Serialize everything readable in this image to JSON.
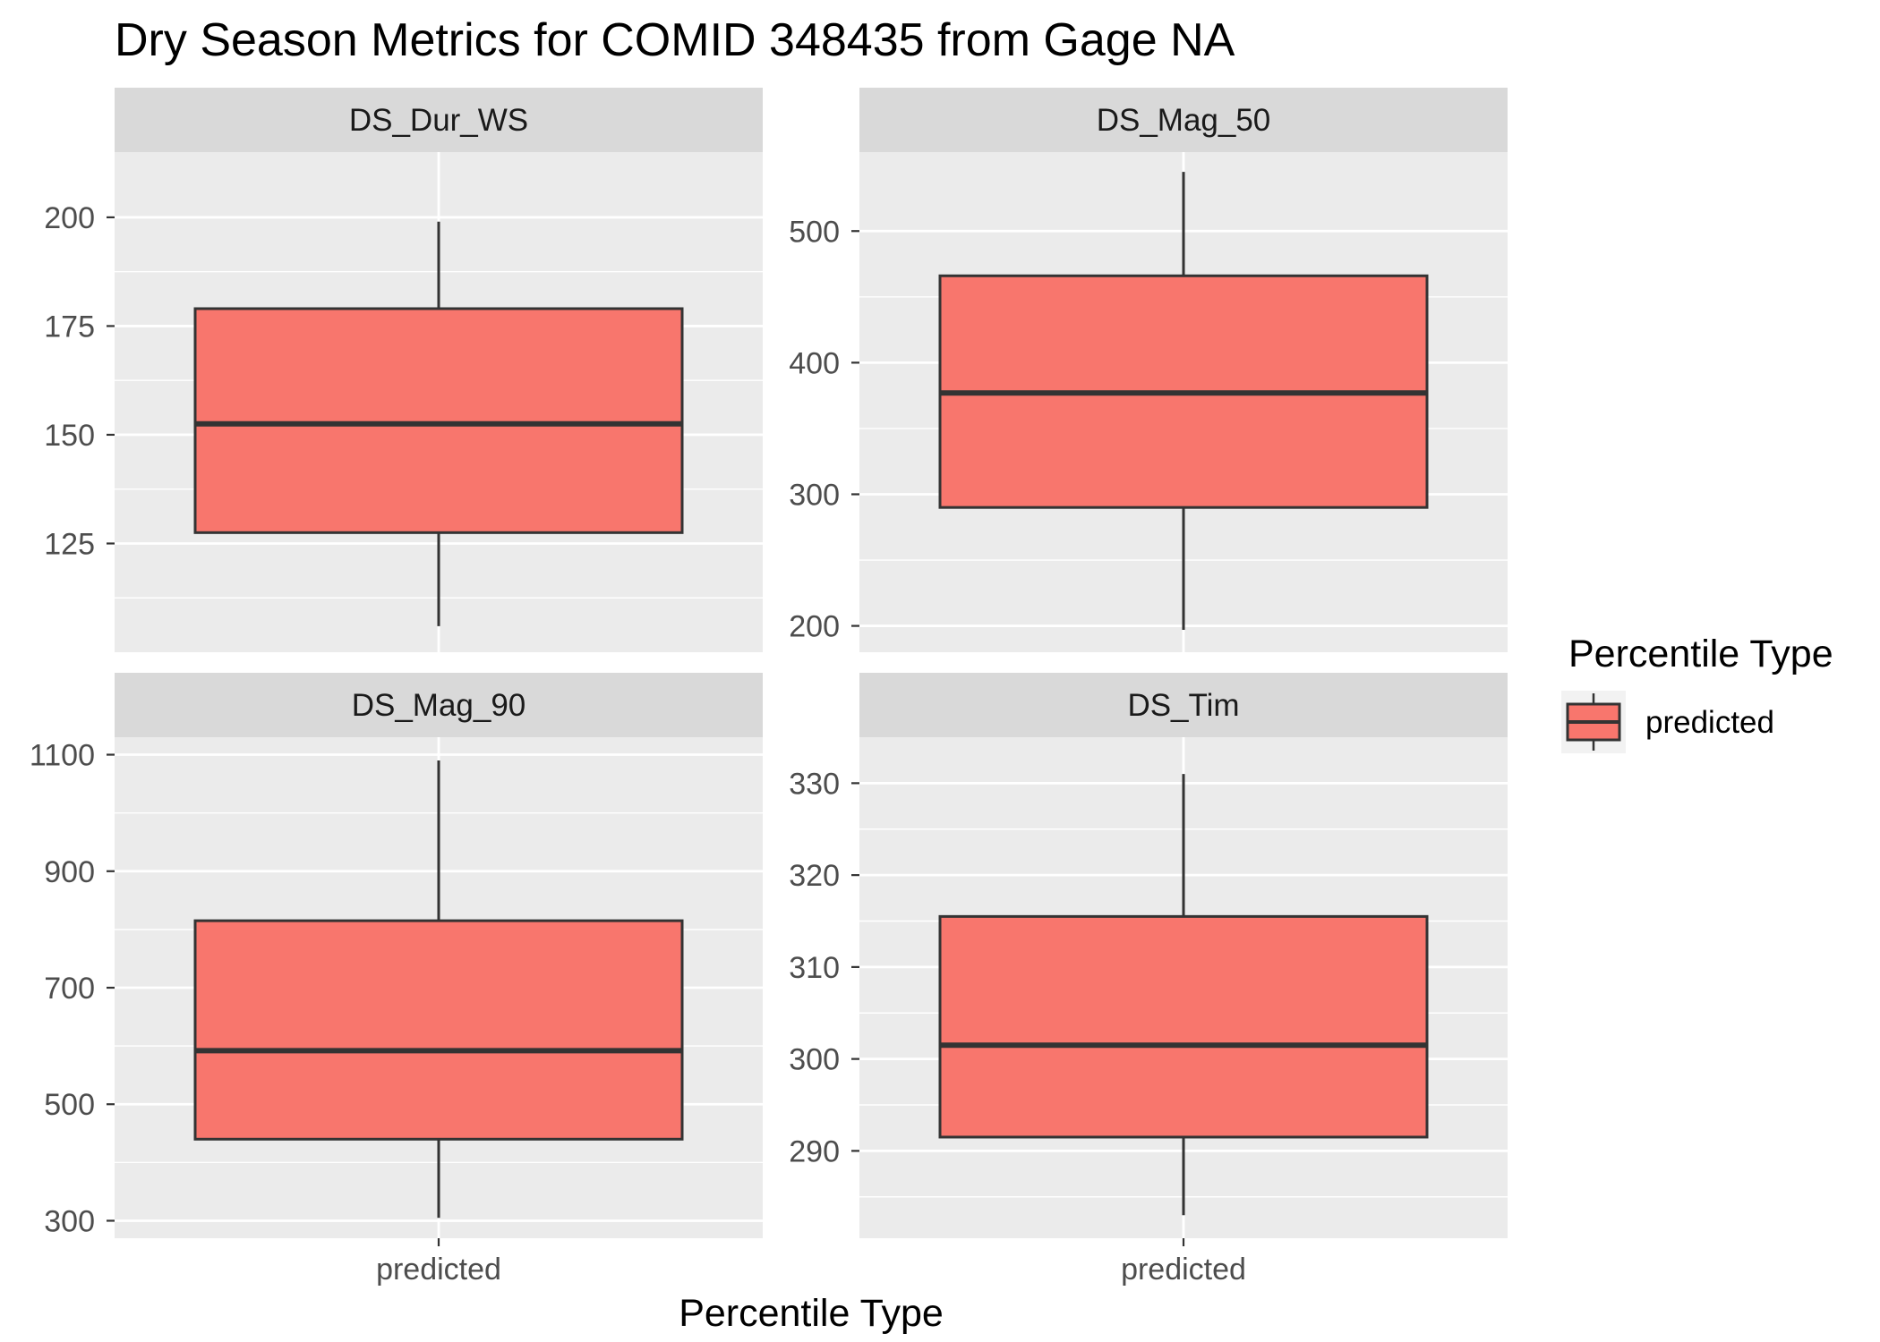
{
  "chart_data": {
    "type": "boxplot",
    "title": "Dry Season Metrics for COMID 348435 from Gage NA",
    "xlabel": "Percentile Type",
    "ylabel": "",
    "x_categories": [
      "predicted"
    ],
    "facets": [
      {
        "name": "DS_Dur_WS",
        "ylim": [
          100,
          215
        ],
        "yticks": [
          125,
          150,
          175,
          200
        ],
        "yticks_minor": [
          112.5,
          137.5,
          162.5,
          187.5
        ],
        "boxes": [
          {
            "x": "predicted",
            "ymin": 106,
            "lower": 127.5,
            "middle": 152.5,
            "upper": 179,
            "ymax": 199
          }
        ]
      },
      {
        "name": "DS_Mag_50",
        "ylim": [
          180,
          560
        ],
        "yticks": [
          200,
          300,
          400,
          500
        ],
        "yticks_minor": [
          250,
          350,
          450
        ],
        "boxes": [
          {
            "x": "predicted",
            "ymin": 197,
            "lower": 290,
            "middle": 377,
            "upper": 466,
            "ymax": 545
          }
        ]
      },
      {
        "name": "DS_Mag_90",
        "ylim": [
          270,
          1130
        ],
        "yticks": [
          300,
          500,
          700,
          900,
          1100
        ],
        "yticks_minor": [
          400,
          600,
          800,
          1000
        ],
        "boxes": [
          {
            "x": "predicted",
            "ymin": 305,
            "lower": 440,
            "middle": 592,
            "upper": 815,
            "ymax": 1090
          }
        ]
      },
      {
        "name": "DS_Tim",
        "ylim": [
          280.5,
          335
        ],
        "yticks": [
          290,
          300,
          310,
          320,
          330
        ],
        "yticks_minor": [
          285,
          295,
          305,
          315,
          325
        ],
        "boxes": [
          {
            "x": "predicted",
            "ymin": 283,
            "lower": 291.5,
            "middle": 301.5,
            "upper": 315.5,
            "ymax": 331
          }
        ]
      }
    ],
    "legend": {
      "title": "Percentile Type",
      "placement": "right",
      "entries": [
        {
          "label": "predicted",
          "color": "#F8766D"
        }
      ]
    },
    "colors": {
      "panel_bg": "#EBEBEB",
      "strip_bg": "#D9D9D9",
      "grid": "#FFFFFF",
      "box_fill": "#F8766D",
      "box_line": "#333333"
    },
    "grid": true
  }
}
